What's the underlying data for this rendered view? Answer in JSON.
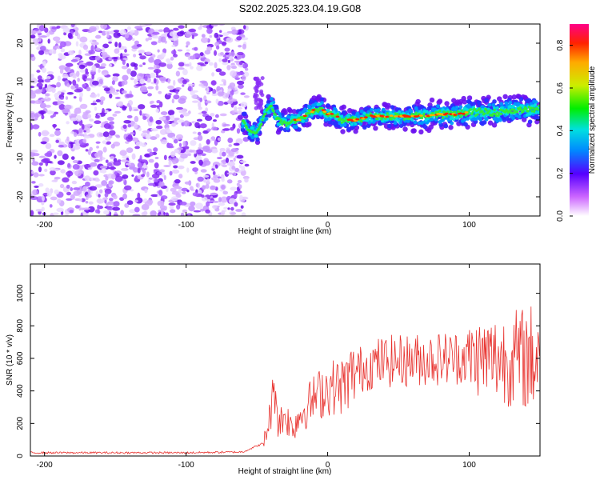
{
  "title": "S202.2025.323.04.19.G08",
  "chart_data": [
    {
      "type": "heatmap",
      "title": "S202.2025.323.04.19.G08",
      "xlabel": "Height of straight line (km)",
      "ylabel": "Frequency (Hz)",
      "xlim": [
        -210,
        150
      ],
      "ylim": [
        -25,
        25
      ],
      "xticks": [
        -200,
        -100,
        0,
        100
      ],
      "yticks": [
        -20,
        -10,
        0,
        10,
        20
      ],
      "noise_region_x": [
        -210,
        -60
      ],
      "signal_trace": {
        "x": [
          -60,
          -55,
          -50,
          -45,
          -40,
          -35,
          -30,
          -25,
          -20,
          -15,
          -10,
          -5,
          0,
          5,
          10,
          20,
          30,
          40,
          50,
          60,
          70,
          80,
          90,
          100,
          110,
          120,
          130,
          140,
          150
        ],
        "freq_hz": [
          0,
          -3,
          -3.5,
          1,
          4,
          0,
          -1,
          0,
          0,
          1.5,
          2.5,
          3,
          1.5,
          1.5,
          0,
          0,
          1,
          1,
          1,
          1,
          1,
          1.5,
          1.5,
          2,
          2,
          2,
          2.5,
          2.5,
          3
        ]
      },
      "colorbar": {
        "label": "Normalized spectral amplitude",
        "range": [
          0.0,
          0.9
        ],
        "ticks": [
          "0.0",
          "0.2",
          "0.4",
          "0.6",
          "0.8"
        ]
      }
    },
    {
      "type": "line",
      "xlabel": "Height of straight line (km)",
      "ylabel": "SNR (10 * v/v)",
      "xlim": [
        -210,
        150
      ],
      "ylim": [
        0,
        1180
      ],
      "xticks": [
        -200,
        -100,
        0,
        100
      ],
      "yticks": [
        0,
        200,
        400,
        600,
        800,
        1000
      ],
      "color": "#e8322e",
      "series": [
        {
          "name": "SNR",
          "x": [
            -210,
            -100,
            -60,
            -45,
            -40,
            -37,
            -35,
            -30,
            -25,
            -20,
            -10,
            0,
            10,
            20,
            30,
            40,
            60,
            80,
            100,
            120,
            140,
            150
          ],
          "y": [
            20,
            20,
            25,
            80,
            280,
            450,
            200,
            250,
            170,
            250,
            350,
            420,
            430,
            520,
            560,
            580,
            590,
            600,
            610,
            600,
            600,
            620
          ]
        }
      ]
    }
  ]
}
